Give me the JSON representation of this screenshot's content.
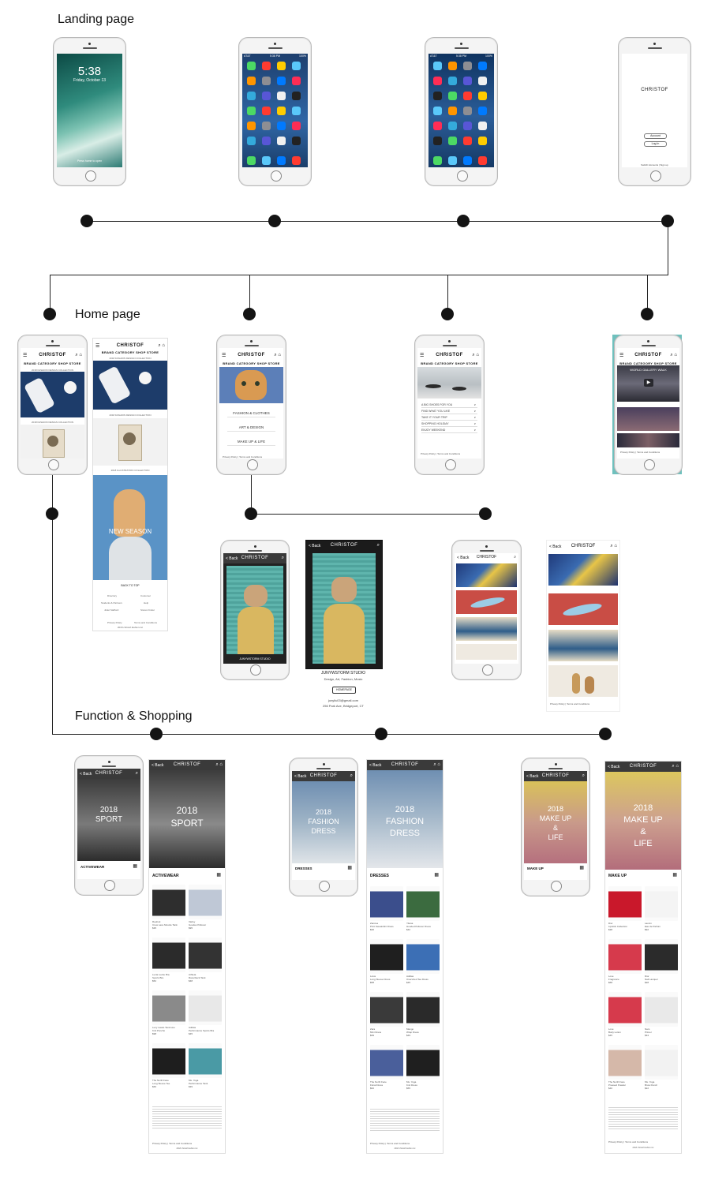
{
  "sections": {
    "landing": "Landing page",
    "home": "Home page",
    "function": "Function & Shopping"
  },
  "lock_screen": {
    "time": "5:38",
    "date": "Friday, October 13",
    "unlock": "Press home to open"
  },
  "status_bar": {
    "carrier": "AT&T",
    "time": "5:38 PM",
    "battery": "100%"
  },
  "brand": {
    "logo": "CHRISTOF"
  },
  "welcome": {
    "buttons": [
      "Account",
      "Log In"
    ],
    "footer": "Switch Accounts  |  Sign up"
  },
  "nav": {
    "items": [
      "BRAND",
      "CATEGORY",
      "SHOP",
      "STORE"
    ]
  },
  "home_brand": {
    "collections": [
      "2018 FASHION DESIGN COLLECTION",
      "2018 FASHION DESIGN COLLECTION",
      "2018 ILLUSTRATION COLLECTION"
    ],
    "new_season": "NEW SEASON",
    "back_to_top": "BACK TO TOP",
    "links": [
      "Directory",
      "Customer",
      "Students & Partners",
      "Help",
      "Juliet Stafford",
      "Stores Finder"
    ],
    "footer": [
      "Privacy Policy",
      "Terms and Conditions"
    ],
    "copyright": "2018 christof.fashion.inc"
  },
  "home_category": {
    "items": [
      "FASHION & CLOTHES",
      "ART & DESIGN",
      "MAKE UP & LIFE"
    ]
  },
  "home_shop": {
    "rows": [
      "A BIG SHOES FOR YOU",
      "FIND WHAT YOU LIKE",
      "TAKE IT YOUR TRIP",
      "SHOPPING HOLIDAY",
      "ENJOY WEEKEND"
    ]
  },
  "home_store": {
    "video_title": "WORLD GALLERY WALK"
  },
  "labels": {
    "back": "< Back",
    "back_arrow": "<",
    "studio": "JUNYWSTORM STUDIO",
    "studio_tag": "Design, Art, Fashion, Music",
    "homepage_btn": "HOMEPAGE",
    "studio_email": "junyliu03@gmail.com",
    "studio_address": "256 Park Ave, Bridgeport, CT"
  },
  "function_screens": [
    {
      "hero": [
        "2018",
        "SPORT"
      ],
      "category": "ACTIVEWEAR"
    },
    {
      "hero": [
        "2018",
        "FASHION",
        "DRESS"
      ],
      "category": "DRESSES"
    },
    {
      "hero": [
        "2018",
        "MAKE UP",
        "&",
        "LIFE"
      ],
      "category": "MAKE UP"
    }
  ],
  "products_activewear": [
    {
      "name": "Reebok",
      "desc": "Crew Lace Muscle Tank",
      "price": "$35"
    },
    {
      "name": "Varley",
      "desc": "Goodes Pullover",
      "price": "$95"
    },
    {
      "name": "Lucia Lucke Bra",
      "desc": "Sports Bra",
      "price": "$52"
    },
    {
      "name": "Athleta",
      "desc": "Racerback Tank",
      "price": "$48"
    },
    {
      "name": "Lucy Lasdo Tank Hoo",
      "desc": "Knit Poncho",
      "price": "$98"
    },
    {
      "name": "Adidas",
      "desc": "Performance Sports Bra",
      "price": "$45"
    },
    {
      "name": "The North Face",
      "desc": "Long Sleeve Tee",
      "price": "$60"
    },
    {
      "name": "Ms. Yoga",
      "desc": "Performance Tank",
      "price": "$39"
    }
  ],
  "products_dresses": [
    {
      "name": "Zanzea",
      "desc": "Print Sweatshirt Dress",
      "price": "$36"
    },
    {
      "name": "Yliana",
      "desc": "Hooded Pullover Dress",
      "price": "$42"
    },
    {
      "name": "Lulus",
      "desc": "Long Sleeve Dress",
      "price": "$58"
    },
    {
      "name": "Adidas",
      "desc": "Oversized Tee Dress",
      "price": "$45"
    },
    {
      "name": "Zara",
      "desc": "Mini Dress",
      "price": "$39"
    },
    {
      "name": "Mango",
      "desc": "Wrap Dress",
      "price": "$49"
    },
    {
      "name": "The North Face",
      "desc": "Floral Dress",
      "price": "$62"
    },
    {
      "name": "Ms. Yoga",
      "desc": "Knit Dress",
      "price": "$55"
    }
  ],
  "products_makeup": [
    {
      "name": "Dior",
      "desc": "Lipstick Collection",
      "price": "$38"
    },
    {
      "name": "Lanvin",
      "desc": "Eau de Parfum",
      "price": "$92"
    },
    {
      "name": "Love",
      "desc": "Fragrance",
      "price": "$68"
    },
    {
      "name": "Dior",
      "desc": "Nail Lacquer",
      "price": "$28"
    },
    {
      "name": "Love",
      "desc": "Body Lotion",
      "price": "$45"
    },
    {
      "name": "Nars",
      "desc": "Primer",
      "price": "$34"
    },
    {
      "name": "The North Face",
      "desc": "Pressed Powder",
      "price": "$40"
    },
    {
      "name": "Ms. Yoga",
      "desc": "Brow Pencil",
      "price": "$22"
    }
  ],
  "colors": {
    "node": "#141414",
    "bar": "#3a3a3a",
    "teal": "#6fc0bd",
    "sea": "#4aa9a5",
    "pink": "#d9a0a8"
  }
}
